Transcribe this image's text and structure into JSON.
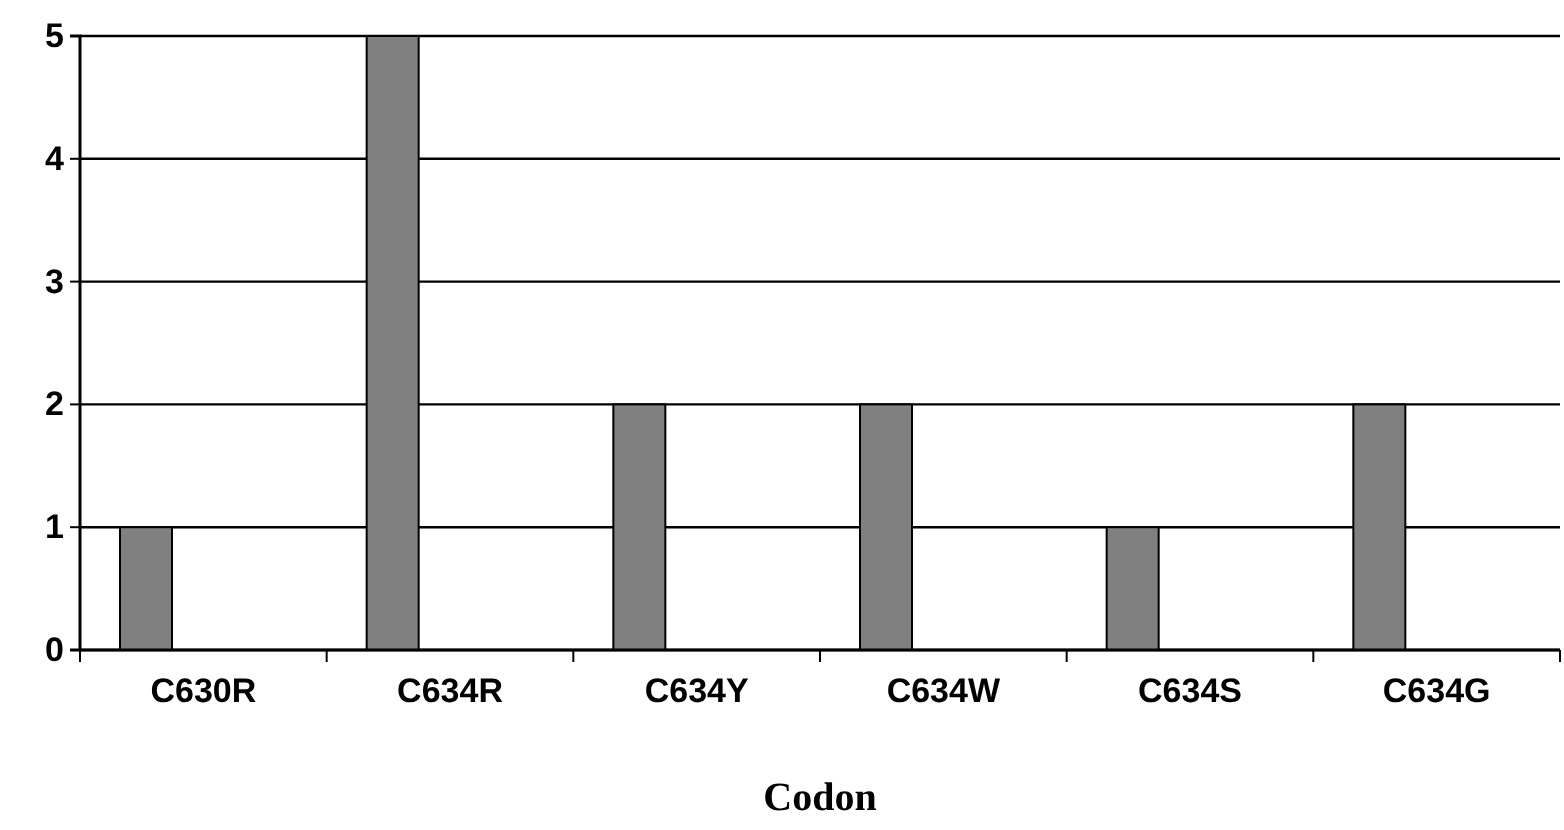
{
  "chart_data": {
    "type": "bar",
    "xlabel": "Codon",
    "categories": [
      "C630R",
      "C634R",
      "C634Y",
      "C634W",
      "C634S",
      "C634G"
    ],
    "values": [
      1,
      5,
      2,
      2,
      1,
      2
    ],
    "color": "#808080",
    "ylim": [
      0,
      5
    ],
    "yticks": [
      0,
      1,
      2,
      3,
      4,
      5
    ],
    "grid": "y"
  }
}
